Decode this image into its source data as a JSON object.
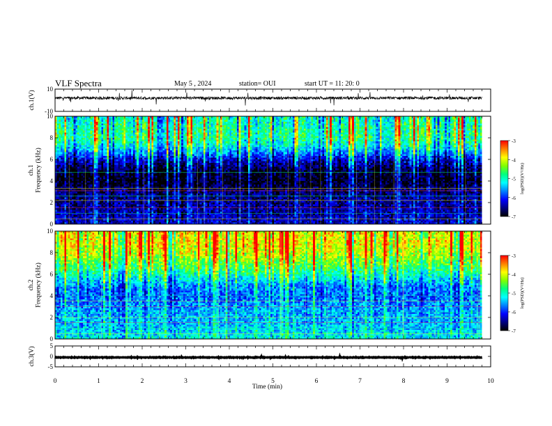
{
  "header": {
    "title": "VLF Spectra",
    "date": "May 5 , 2024",
    "station": "station= OUI",
    "start": "start UT = 11: 20: 0"
  },
  "colors": {
    "background": "#ffffff",
    "axis": "#000000",
    "colormap_stops": [
      "#000000",
      "#000080",
      "#0000ff",
      "#0080ff",
      "#00ffff",
      "#00ff80",
      "#80ff00",
      "#ffff00",
      "#ff8000",
      "#ff0000",
      "#ffffff"
    ]
  },
  "chart_data": [
    {
      "type": "line",
      "panel": "ch1-waveform",
      "ylabel": "ch.1(V)",
      "ylim": [
        -10,
        10
      ],
      "yticks": [
        "10",
        "-10"
      ],
      "x": [
        0,
        1,
        2,
        3,
        4,
        5,
        6,
        7,
        8,
        9,
        9.8
      ],
      "values": [
        2,
        2,
        2,
        2,
        2,
        2,
        2,
        2,
        2,
        2,
        2
      ]
    },
    {
      "type": "heatmap",
      "panel": "ch1-spectrogram",
      "ylabel": "ch.1 Frequency (kHz)",
      "ylim": [
        0,
        10
      ],
      "yticks": [
        "0",
        "2",
        "4",
        "6",
        "8",
        "10"
      ],
      "xlim": [
        0,
        10
      ],
      "data_end_min": 9.8,
      "colorbar": {
        "label": "log(PSD)(V²/Hz)",
        "range": [
          -7,
          -3
        ],
        "ticks": [
          "-3",
          "-4",
          "-5",
          "-6",
          "-7"
        ]
      },
      "profile": {
        "freq_khz": [
          0,
          1,
          2,
          3,
          4,
          5,
          6,
          7,
          8,
          9,
          10
        ],
        "log_psd": [
          -6.3,
          -6.4,
          -6.5,
          -6.6,
          -6.9,
          -6.8,
          -6.2,
          -5.3,
          -4.8,
          -4.9,
          -5.0
        ]
      },
      "lines_khz": [
        0.5,
        1.0,
        1.5,
        2.2,
        2.6,
        3.1,
        3.3,
        4.8
      ]
    },
    {
      "type": "heatmap",
      "panel": "ch2-spectrogram",
      "ylabel": "ch.2 Frequency (kHz)",
      "ylim": [
        0,
        10
      ],
      "yticks": [
        "0",
        "2",
        "4",
        "6",
        "8",
        "10"
      ],
      "xlim": [
        0,
        10
      ],
      "data_end_min": 9.8,
      "colorbar": {
        "label": "log(PSD)(V²/Hz)",
        "range": [
          -7,
          -3
        ],
        "ticks": [
          "-3",
          "-4",
          "-5",
          "-6",
          "-7"
        ]
      },
      "profile": {
        "freq_khz": [
          0,
          1,
          2,
          3,
          4,
          5,
          6,
          7,
          8,
          9,
          10
        ],
        "log_psd": [
          -5.2,
          -5.4,
          -5.5,
          -5.6,
          -5.8,
          -5.6,
          -5.0,
          -4.5,
          -4.1,
          -3.9,
          -4.0
        ]
      },
      "lines_khz": [
        0.5,
        1.0,
        1.5,
        2.0,
        2.5,
        3.0,
        3.5,
        4.0
      ]
    },
    {
      "type": "line",
      "panel": "ch3-waveform",
      "ylabel": "ch.3(V)",
      "ylim": [
        -5,
        5
      ],
      "yticks": [
        "5",
        "0",
        "-5"
      ],
      "xlabel": "Time (min)",
      "xlim": [
        0,
        10
      ],
      "xticks": [
        "0",
        "1",
        "2",
        "3",
        "4",
        "5",
        "6",
        "7",
        "8",
        "9",
        "10"
      ],
      "x": [
        0,
        1,
        2,
        3,
        4,
        5,
        6,
        7,
        8,
        9,
        9.8
      ],
      "values": [
        -0.5,
        -0.5,
        -0.5,
        -0.5,
        -0.5,
        -0.5,
        -0.5,
        -0.5,
        -0.5,
        -0.5,
        -0.5
      ]
    }
  ]
}
